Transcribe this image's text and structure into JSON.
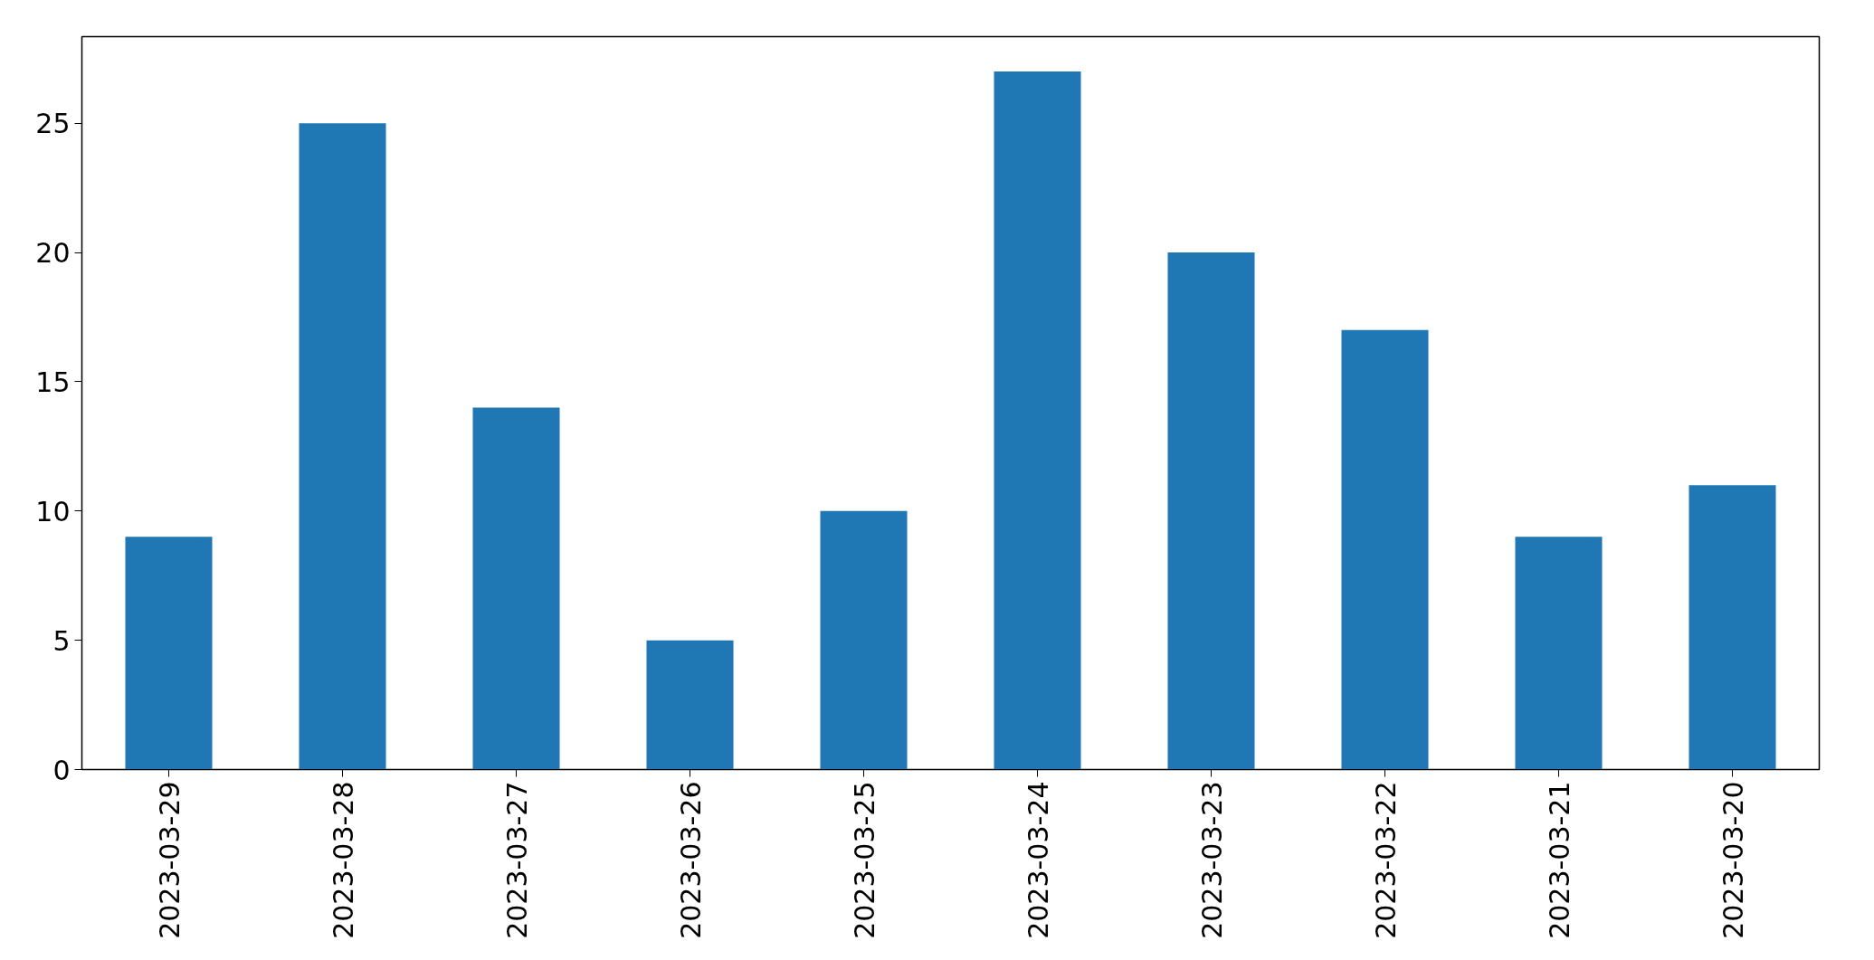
{
  "chart_data": {
    "type": "bar",
    "categories": [
      "2023-03-29",
      "2023-03-28",
      "2023-03-27",
      "2023-03-26",
      "2023-03-25",
      "2023-03-24",
      "2023-03-23",
      "2023-03-22",
      "2023-03-21",
      "2023-03-20"
    ],
    "values": [
      9,
      25,
      14,
      5,
      10,
      27,
      20,
      17,
      9,
      11
    ],
    "color": "#1f77b4",
    "ylim": [
      0,
      28.35
    ],
    "yticks": [
      0,
      5,
      10,
      15,
      20,
      25
    ],
    "grid": false
  }
}
